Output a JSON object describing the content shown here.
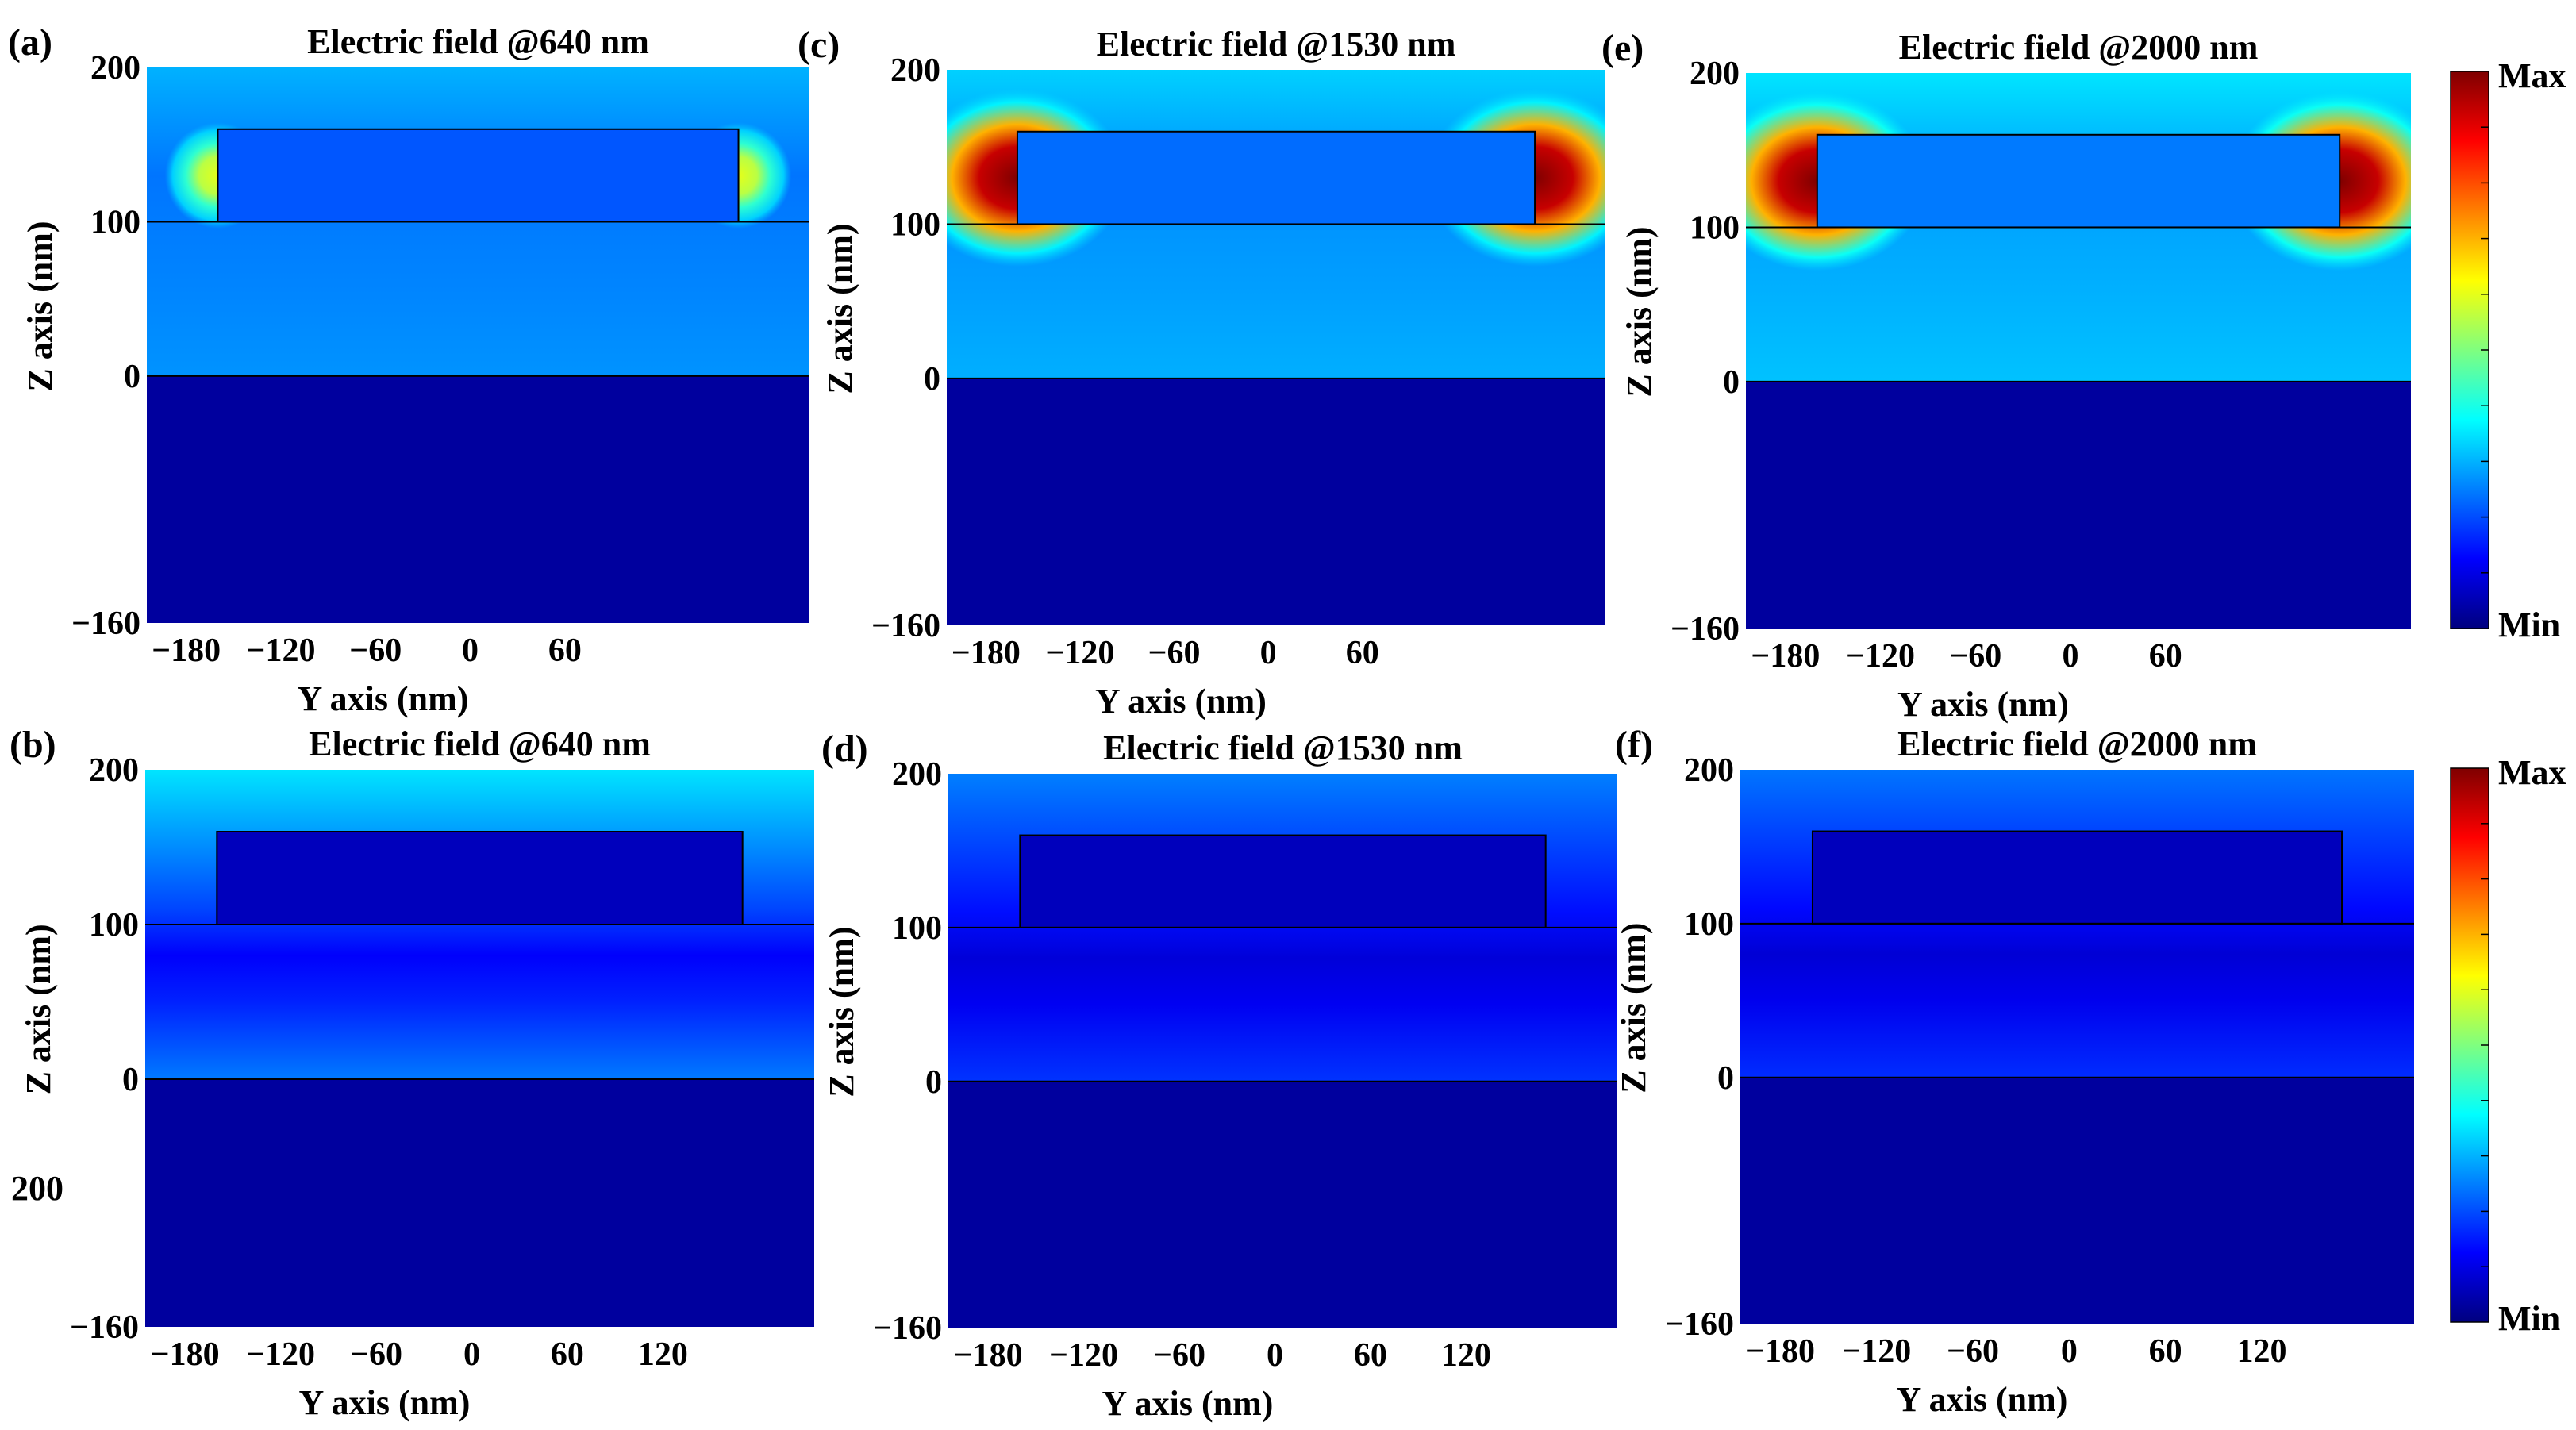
{
  "colors": {
    "colormap": [
      "#00007f",
      "#0000ff",
      "#007fff",
      "#00ffff",
      "#7fff7f",
      "#ffff00",
      "#ff7f00",
      "#ff0000",
      "#7f0000"
    ],
    "outline": "#000000"
  },
  "colorbars": [
    {
      "max_label": "Max",
      "min_label": "Min"
    },
    {
      "max_label": "Max",
      "min_label": "Min"
    }
  ],
  "stray_label": "200",
  "chart_data": [
    {
      "type": "heatmap",
      "panel": "(a)",
      "title": "Electric field @640 nm",
      "xlabel": "Y axis (nm)",
      "ylabel": "Z axis (nm)",
      "xlim": [
        -205,
        215
      ],
      "ylim": [
        -160,
        200
      ],
      "xticks": [
        "−180",
        "−120",
        "−60",
        "0",
        "60"
      ],
      "xtick_values": [
        -180,
        -120,
        -60,
        0,
        60
      ],
      "yticks": [
        "200",
        "100",
        "0",
        "−160"
      ],
      "ytick_values": [
        200,
        100,
        0,
        -160
      ],
      "structure": {
        "y_range": [
          -160,
          170
        ],
        "z_range": [
          100,
          160
        ]
      },
      "field_pattern": "weak corner hot spots at strip edges and at substrate interface",
      "intensity": {
        "top": 0.3,
        "corner_hotspot": 0.6,
        "substrate": 0.03
      }
    },
    {
      "type": "heatmap",
      "panel": "(b)",
      "title": "Electric field @640 nm",
      "xlabel": "Y axis (nm)",
      "ylabel": "Z axis (nm)",
      "xlim": [
        -205,
        215
      ],
      "ylim": [
        -160,
        200
      ],
      "xticks": [
        "−180",
        "−120",
        "−60",
        "0",
        "60",
        "120"
      ],
      "xtick_values": [
        -180,
        -120,
        -60,
        0,
        60,
        120
      ],
      "yticks": [
        "200",
        "100",
        "0",
        "−160"
      ],
      "ytick_values": [
        200,
        100,
        0,
        -160
      ],
      "structure": {
        "y_range": [
          -160,
          170
        ],
        "z_range": [
          100,
          160
        ]
      },
      "field_pattern": "vertical gradient, field minimum below strip",
      "intensity": {
        "top": 0.35,
        "corner_hotspot": 0.0,
        "substrate": 0.03
      }
    },
    {
      "type": "heatmap",
      "panel": "(c)",
      "title": "Electric field @1530 nm",
      "xlabel": "Y axis (nm)",
      "ylabel": "Z axis (nm)",
      "xlim": [
        -205,
        215
      ],
      "ylim": [
        -160,
        200
      ],
      "xticks": [
        "−180",
        "−120",
        "−60",
        "0",
        "60"
      ],
      "xtick_values": [
        -180,
        -120,
        -60,
        0,
        60
      ],
      "yticks": [
        "200",
        "100",
        "0",
        "−160"
      ],
      "ytick_values": [
        200,
        100,
        0,
        -160
      ],
      "structure": {
        "y_range": [
          -160,
          170
        ],
        "z_range": [
          100,
          160
        ]
      },
      "field_pattern": "strong hot spots on both sides of strip",
      "intensity": {
        "top": 0.33,
        "corner_hotspot": 1.0,
        "substrate": 0.03
      }
    },
    {
      "type": "heatmap",
      "panel": "(d)",
      "title": "Electric field @1530 nm",
      "xlabel": "Y axis (nm)",
      "ylabel": "Z axis (nm)",
      "xlim": [
        -205,
        215
      ],
      "ylim": [
        -160,
        200
      ],
      "xticks": [
        "−180",
        "−120",
        "−60",
        "0",
        "60",
        "120"
      ],
      "xtick_values": [
        -180,
        -120,
        -60,
        0,
        60,
        120
      ],
      "yticks": [
        "200",
        "100",
        "0",
        "−160"
      ],
      "ytick_values": [
        200,
        100,
        0,
        -160
      ],
      "structure": {
        "y_range": [
          -160,
          170
        ],
        "z_range": [
          100,
          160
        ]
      },
      "field_pattern": "weak uniform field, minimum around strip",
      "intensity": {
        "top": 0.25,
        "corner_hotspot": 0.0,
        "substrate": 0.03
      }
    },
    {
      "type": "heatmap",
      "panel": "(e)",
      "title": "Electric field @2000 nm",
      "xlabel": "Y axis (nm)",
      "ylabel": "Z axis (nm)",
      "xlim": [
        -205,
        215
      ],
      "ylim": [
        -160,
        200
      ],
      "xticks": [
        "−180",
        "−120",
        "−60",
        "0",
        "60"
      ],
      "xtick_values": [
        -180,
        -120,
        -60,
        0,
        60
      ],
      "yticks": [
        "200",
        "100",
        "0",
        "−160"
      ],
      "ytick_values": [
        200,
        100,
        0,
        -160
      ],
      "structure": {
        "y_range": [
          -160,
          170
        ],
        "z_range": [
          100,
          160
        ]
      },
      "field_pattern": "strong hot spots on both sides of strip",
      "intensity": {
        "top": 0.35,
        "corner_hotspot": 1.0,
        "substrate": 0.03
      }
    },
    {
      "type": "heatmap",
      "panel": "(f)",
      "title": "Electric field @2000 nm",
      "xlabel": "Y axis (nm)",
      "ylabel": "Z axis (nm)",
      "xlim": [
        -205,
        215
      ],
      "ylim": [
        -160,
        200
      ],
      "xticks": [
        "−180",
        "−120",
        "−60",
        "0",
        "60",
        "120"
      ],
      "xtick_values": [
        -180,
        -120,
        -60,
        0,
        60,
        120
      ],
      "yticks": [
        "200",
        "100",
        "0",
        "−160"
      ],
      "ytick_values": [
        200,
        100,
        0,
        -160
      ],
      "structure": {
        "y_range": [
          -160,
          170
        ],
        "z_range": [
          100,
          160
        ]
      },
      "field_pattern": "weak uniform field, minimum around strip",
      "intensity": {
        "top": 0.24,
        "corner_hotspot": 0.0,
        "substrate": 0.03
      }
    }
  ]
}
